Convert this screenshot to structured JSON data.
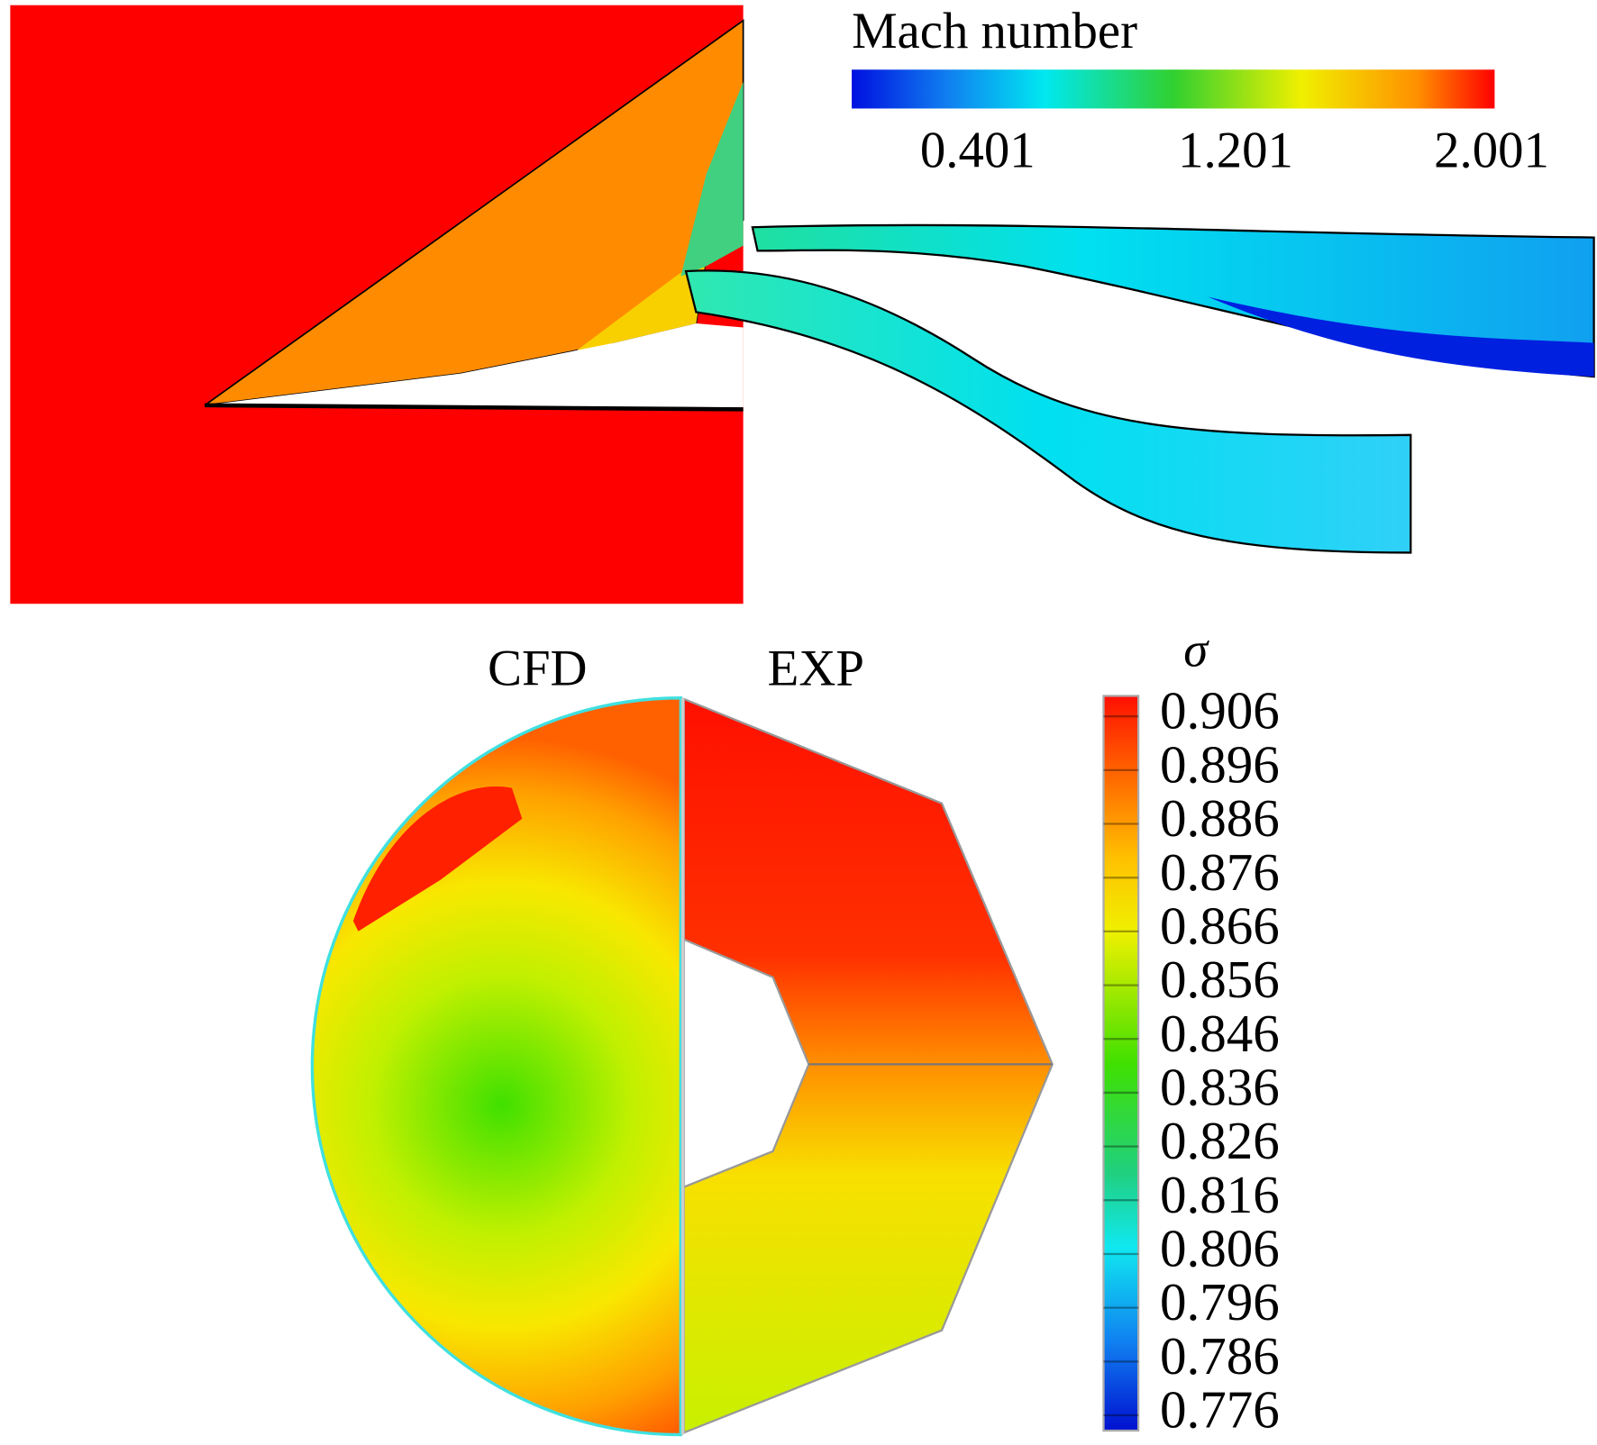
{
  "mach_legend": {
    "title": "Mach number",
    "ticks": [
      "0.401",
      "1.201",
      "2.001"
    ]
  },
  "section": {
    "left_label": "CFD",
    "right_label": "EXP"
  },
  "sigma_legend": {
    "title": "σ",
    "ticks": [
      "0.906",
      "0.896",
      "0.886",
      "0.876",
      "0.866",
      "0.856",
      "0.846",
      "0.836",
      "0.826",
      "0.816",
      "0.806",
      "0.796",
      "0.786",
      "0.776"
    ]
  }
}
